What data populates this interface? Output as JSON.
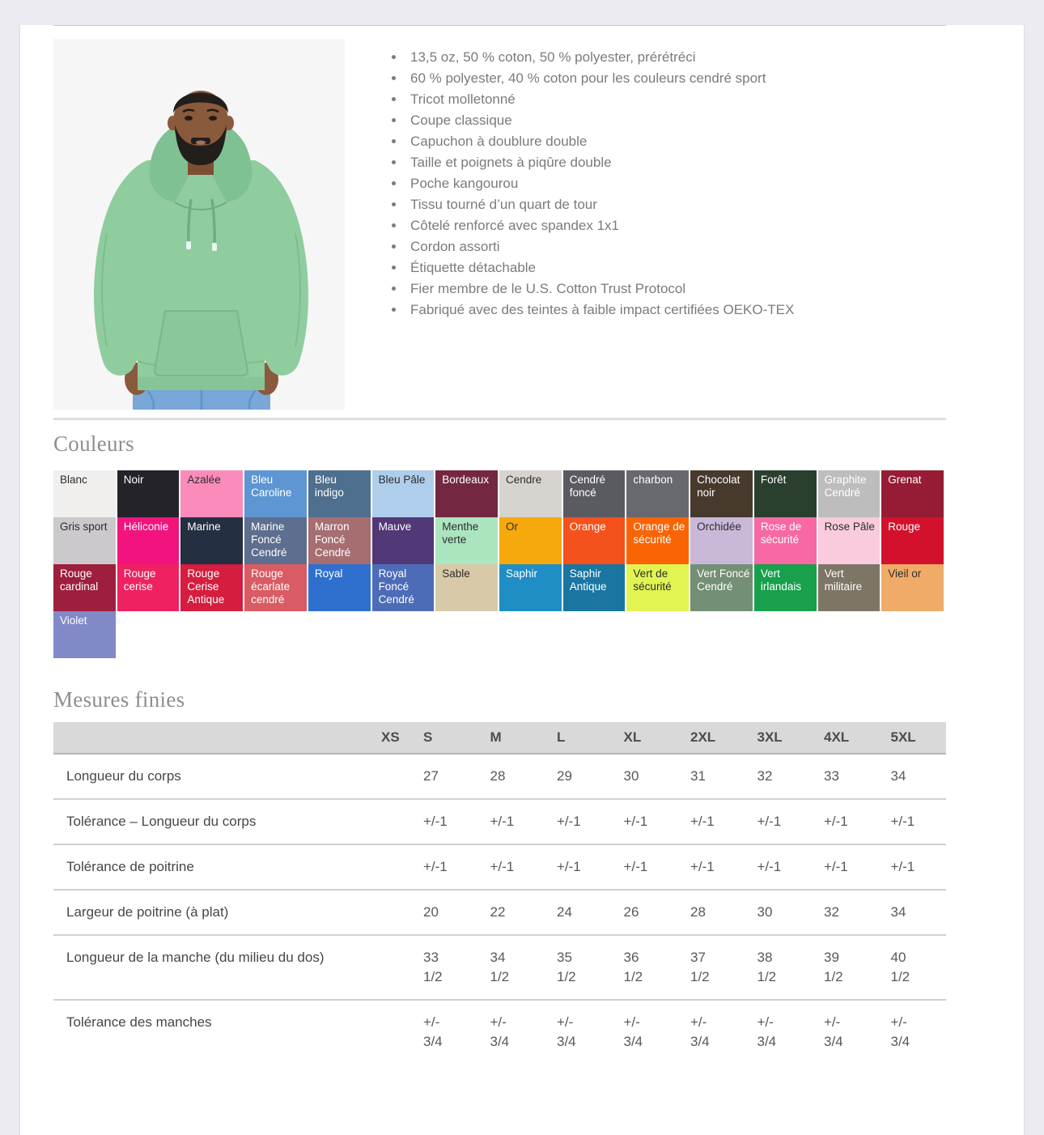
{
  "product": {
    "features": [
      "13,5 oz, 50 % coton, 50 % polyester, prérétréci",
      "60 % polyester, 40 % coton pour les couleurs cendré sport",
      "Tricot molletonné",
      "Coupe classique",
      "Capuchon à doublure double",
      "Taille et poignets à piqûre double",
      "Poche kangourou",
      "Tissu tourné d’un quart de tour",
      "Côtelé renforcé avec spandex 1x1",
      "Cordon assorti",
      "Étiquette détachable",
      "Fier membre de le U.S. Cotton Trust Protocol",
      "Fabriqué avec des teintes à faible impact certifiées OEKO-TEX"
    ]
  },
  "colors": {
    "title": "Couleurs",
    "swatches": [
      {
        "name": "Blanc",
        "bg": "#f0efee",
        "fg": "#2e2e2e"
      },
      {
        "name": "Noir",
        "bg": "#242329",
        "fg": "#ffffff"
      },
      {
        "name": "Azalée",
        "bg": "#fb8bbb",
        "fg": "#2e2e2e"
      },
      {
        "name": "Bleu Caroline",
        "bg": "#5d96d3",
        "fg": "#ffffff"
      },
      {
        "name": "Bleu indigo",
        "bg": "#4f6f8e",
        "fg": "#ffffff"
      },
      {
        "name": "Bleu Pâle",
        "bg": "#afceec",
        "fg": "#2e2e2e"
      },
      {
        "name": "Bordeaux",
        "bg": "#732740",
        "fg": "#ffffff"
      },
      {
        "name": "Cendre",
        "bg": "#d7d3cf",
        "fg": "#2e2e2e"
      },
      {
        "name": "Cendré foncé",
        "bg": "#5a5a61",
        "fg": "#ffffff"
      },
      {
        "name": "charbon",
        "bg": "#68686f",
        "fg": "#ffffff"
      },
      {
        "name": "Chocolat noir",
        "bg": "#473a2d",
        "fg": "#ffffff"
      },
      {
        "name": "Forêt",
        "bg": "#2a3f2e",
        "fg": "#ffffff"
      },
      {
        "name": "Graphite Cendré",
        "bg": "#bdbdbd",
        "fg": "#ffffff"
      },
      {
        "name": "Grenat",
        "bg": "#951c34",
        "fg": "#ffffff"
      },
      {
        "name": "Gris sport",
        "bg": "#cbc9cb",
        "fg": "#2e2e2e"
      },
      {
        "name": "Héliconie",
        "bg": "#f2137e",
        "fg": "#ffffff"
      },
      {
        "name": "Marine",
        "bg": "#252f42",
        "fg": "#ffffff"
      },
      {
        "name": "Marine Foncé Cendré",
        "bg": "#5d6e8e",
        "fg": "#ffffff"
      },
      {
        "name": "Marron Foncé Cendré",
        "bg": "#a76e71",
        "fg": "#ffffff"
      },
      {
        "name": "Mauve",
        "bg": "#513877",
        "fg": "#ffffff"
      },
      {
        "name": "Menthe verte",
        "bg": "#abe5c0",
        "fg": "#2e2e2e"
      },
      {
        "name": "Or",
        "bg": "#f6a90c",
        "fg": "#2e2e2e"
      },
      {
        "name": "Orange",
        "bg": "#f4511d",
        "fg": "#ffffff"
      },
      {
        "name": "Orange de sécurité",
        "bg": "#f96505",
        "fg": "#ffffff"
      },
      {
        "name": "Orchidée",
        "bg": "#c9b8d8",
        "fg": "#2e2e2e"
      },
      {
        "name": "Rose de sécurité",
        "bg": "#f768a4",
        "fg": "#ffffff"
      },
      {
        "name": "Rose Pâle",
        "bg": "#f9cbdd",
        "fg": "#2e2e2e"
      },
      {
        "name": "Rouge",
        "bg": "#d3112c",
        "fg": "#ffffff"
      },
      {
        "name": "Rouge cardinal",
        "bg": "#9e1e3e",
        "fg": "#ffffff"
      },
      {
        "name": "Rouge cerise",
        "bg": "#ef2160",
        "fg": "#ffffff"
      },
      {
        "name": "Rouge Cerise Antique",
        "bg": "#d41d3f",
        "fg": "#ffffff"
      },
      {
        "name": "Rouge écarlate cendré",
        "bg": "#d95b63",
        "fg": "#ffffff"
      },
      {
        "name": "Royal",
        "bg": "#2f70cf",
        "fg": "#ffffff"
      },
      {
        "name": "Royal Foncé Cendré",
        "bg": "#4d6cb8",
        "fg": "#ffffff"
      },
      {
        "name": "Sable",
        "bg": "#d8caa9",
        "fg": "#2e2e2e"
      },
      {
        "name": "Saphir",
        "bg": "#1e8ec5",
        "fg": "#ffffff"
      },
      {
        "name": "Saphir Antique",
        "bg": "#1a76a1",
        "fg": "#ffffff"
      },
      {
        "name": "Vert de sécurité",
        "bg": "#e1f452",
        "fg": "#2e2e2e"
      },
      {
        "name": "Vert Foncé Cendré",
        "bg": "#738f75",
        "fg": "#ffffff"
      },
      {
        "name": "Vert irlandais",
        "bg": "#18a04c",
        "fg": "#ffffff"
      },
      {
        "name": "Vert militaire",
        "bg": "#7d7566",
        "fg": "#ffffff"
      },
      {
        "name": "Vieil or",
        "bg": "#f0ab68",
        "fg": "#2e2e2e"
      },
      {
        "name": "Violet",
        "bg": "#8189c6",
        "fg": "#ffffff"
      }
    ]
  },
  "measures": {
    "title": "Mesures finies",
    "sizes": [
      "XS",
      "S",
      "M",
      "L",
      "XL",
      "2XL",
      "3XL",
      "4XL",
      "5XL"
    ],
    "rows": [
      {
        "label": "Longueur du corps",
        "values": [
          "",
          "27",
          "28",
          "29",
          "30",
          "31",
          "32",
          "33",
          "34"
        ]
      },
      {
        "label": "Tolérance – Longueur du corps",
        "values": [
          "",
          "+/-1",
          "+/-1",
          "+/-1",
          "+/-1",
          "+/-1",
          "+/-1",
          "+/-1",
          "+/-1"
        ]
      },
      {
        "label": "Tolérance de poitrine",
        "values": [
          "",
          "+/-1",
          "+/-1",
          "+/-1",
          "+/-1",
          "+/-1",
          "+/-1",
          "+/-1",
          "+/-1"
        ]
      },
      {
        "label": "Largeur de poitrine (à plat)",
        "values": [
          "",
          "20",
          "22",
          "24",
          "26",
          "28",
          "30",
          "32",
          "34"
        ]
      },
      {
        "label": "Longueur de la manche (du milieu du dos)",
        "values": [
          "",
          "33\n1/2",
          "34\n1/2",
          "35\n1/2",
          "36\n1/2",
          "37\n1/2",
          "38\n1/2",
          "39\n1/2",
          "40\n1/2"
        ]
      },
      {
        "label": "Tolérance des manches",
        "values": [
          "",
          "+/-\n3/4",
          "+/-\n3/4",
          "+/-\n3/4",
          "+/-\n3/4",
          "+/-\n3/4",
          "+/-\n3/4",
          "+/-\n3/4",
          "+/-\n3/4"
        ]
      }
    ]
  }
}
